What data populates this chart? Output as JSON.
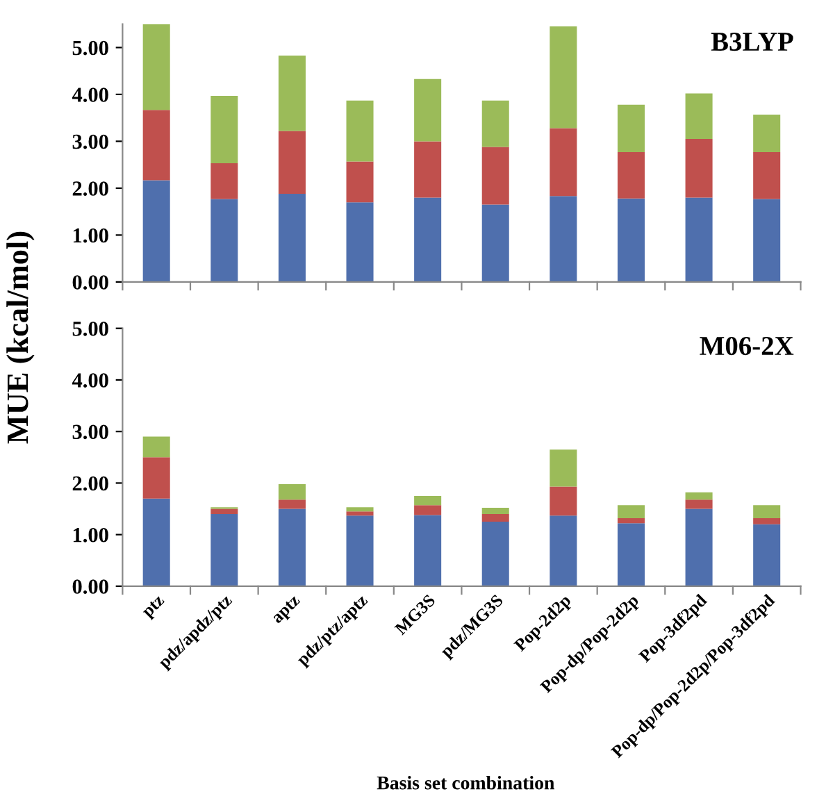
{
  "chart_data": [
    {
      "type": "bar",
      "stacked": true,
      "title": "B3LYP",
      "categories": [
        null,
        null,
        null,
        null,
        null,
        null,
        null,
        null,
        null,
        null
      ],
      "series": [
        {
          "color": "#4f6fad",
          "values": [
            2.17,
            1.77,
            1.88,
            1.7,
            1.8,
            1.65,
            1.83,
            1.78,
            1.8,
            1.77
          ]
        },
        {
          "color": "#c0504d",
          "values": [
            1.5,
            0.76,
            1.34,
            0.87,
            1.2,
            1.23,
            1.45,
            0.99,
            1.25,
            1.0
          ]
        },
        {
          "color": "#9bbb59",
          "values": [
            1.83,
            1.44,
            1.61,
            1.3,
            1.33,
            0.99,
            2.17,
            1.01,
            0.97,
            0.8
          ]
        }
      ],
      "ylim": [
        0,
        5.5
      ],
      "yticks": [
        {
          "value": 0,
          "label": "0.00"
        },
        {
          "value": 1,
          "label": "1.00"
        },
        {
          "value": 2,
          "label": "2.00"
        },
        {
          "value": 3,
          "label": "3.00"
        },
        {
          "value": 4,
          "label": "4.00"
        },
        {
          "value": 5,
          "label": "5.00"
        }
      ],
      "tick_labels": "y",
      "grid": false,
      "legend": false
    },
    {
      "type": "bar",
      "stacked": true,
      "title": "M06-2X",
      "ylabel": "MUE (kcal/mol)",
      "xlabel": "Basis set combination",
      "categories": [
        "ptz",
        "pdz/apdz/ptz",
        "aptz",
        "pdz/ptz/aptz",
        "MG3S",
        "pdz/MG3S",
        "Pop-2d2p",
        "Pop-dp/Pop-2d2p",
        "Pop-3df2pd",
        "Pop-dp/Pop-2d2p/Pop-3df2pd"
      ],
      "series": [
        {
          "color": "#4f6fad",
          "values": [
            1.7,
            1.4,
            1.5,
            1.37,
            1.38,
            1.25,
            1.37,
            1.22,
            1.5,
            1.2
          ]
        },
        {
          "color": "#c0504d",
          "values": [
            0.8,
            0.1,
            0.18,
            0.08,
            0.19,
            0.15,
            0.56,
            0.1,
            0.18,
            0.12
          ]
        },
        {
          "color": "#9bbb59",
          "values": [
            0.4,
            0.03,
            0.3,
            0.08,
            0.18,
            0.12,
            0.72,
            0.25,
            0.14,
            0.25
          ]
        }
      ],
      "ylim": [
        0,
        5
      ],
      "yticks": [
        {
          "value": 0,
          "label": "0.00"
        },
        {
          "value": 1,
          "label": "1.00"
        },
        {
          "value": 2,
          "label": "2.00"
        },
        {
          "value": 3,
          "label": "3.00"
        },
        {
          "value": 4,
          "label": "4.00"
        },
        {
          "value": 5,
          "label": "5.00"
        }
      ],
      "grid": false,
      "legend": false
    }
  ]
}
